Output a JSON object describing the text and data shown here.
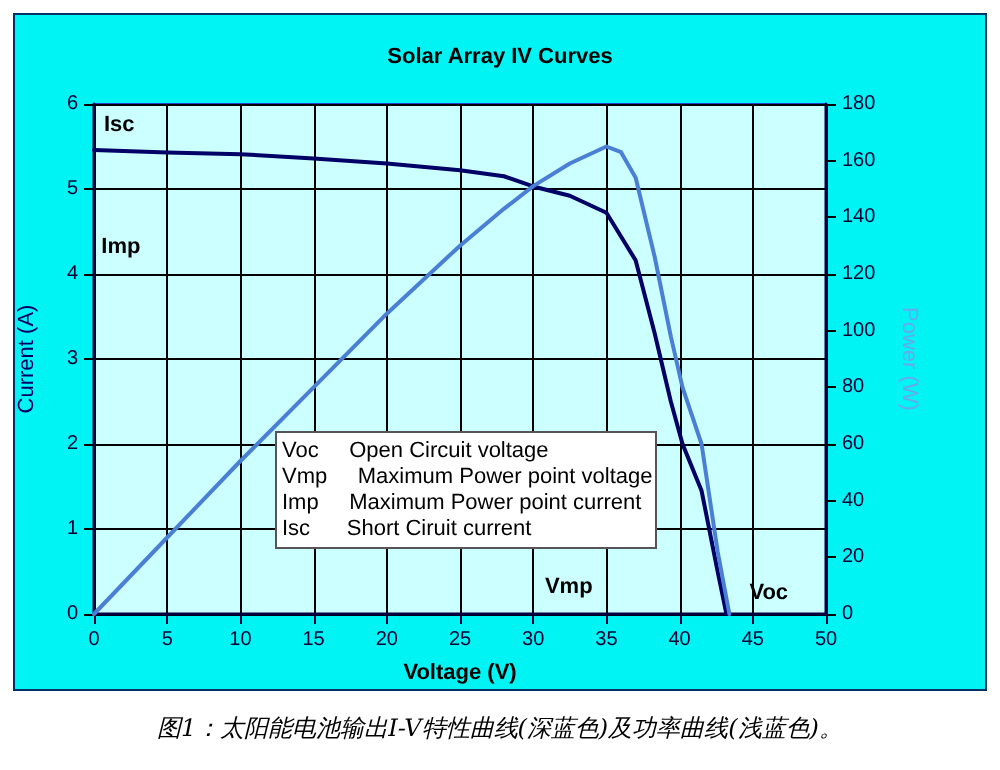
{
  "chart_data": {
    "type": "line",
    "title": "Solar Array IV Curves",
    "xlabel": "Voltage (V)",
    "ylabel": "Current (A)",
    "y2label": "Power (W)",
    "series": [
      {
        "color": "#000066",
        "x": [
          0,
          5,
          10,
          15,
          20,
          25,
          28,
          30,
          32.5,
          35,
          37,
          38.3,
          39.4,
          40.2,
          41.5,
          42.6,
          43.2
        ],
        "values": [
          5.46,
          5.43,
          5.41,
          5.36,
          5.3,
          5.22,
          5.15,
          5.03,
          4.92,
          4.72,
          4.16,
          3.3,
          2.5,
          2.0,
          1.45,
          0.5,
          0
        ]
      },
      {
        "color": "#4a7fd6",
        "axis": "y2",
        "x": [
          0,
          5,
          10,
          15,
          20,
          25,
          28,
          30,
          32.5,
          35,
          36,
          37,
          38.3,
          39.4,
          40.2,
          41.5,
          42.6,
          43.4
        ],
        "values": [
          0,
          27,
          54,
          80,
          106,
          130,
          143,
          151,
          159,
          165,
          163,
          154,
          126,
          98,
          80,
          60,
          22,
          0
        ]
      }
    ],
    "xlim": [
      0,
      50
    ],
    "xticks": [
      0,
      5,
      10,
      15,
      20,
      25,
      30,
      35,
      40,
      45,
      50
    ],
    "ylim": [
      0,
      6
    ],
    "yticks": [
      0,
      1,
      2,
      3,
      4,
      5,
      6
    ],
    "y2lim": [
      0,
      180
    ],
    "y2ticks": [
      0,
      20,
      40,
      60,
      80,
      100,
      120,
      140,
      160,
      180
    ],
    "grid": true,
    "marker": "none",
    "line_style": "solid",
    "annotations": [
      {
        "text": "Isc",
        "x": 0,
        "y": 5.46
      },
      {
        "text": "Voc",
        "x": 43.4,
        "y": 0
      },
      "Imp",
      "Vmp",
      "Voc     Open Circuit voltage",
      "Vmp     Maximum Power point voltage",
      "Imp     Maximum Power point current",
      "Isc      Short Ciruit current",
      "图1：太阳能电池输出I-V特性曲线(深蓝色)及功率曲线(浅蓝色)。"
    ]
  }
}
